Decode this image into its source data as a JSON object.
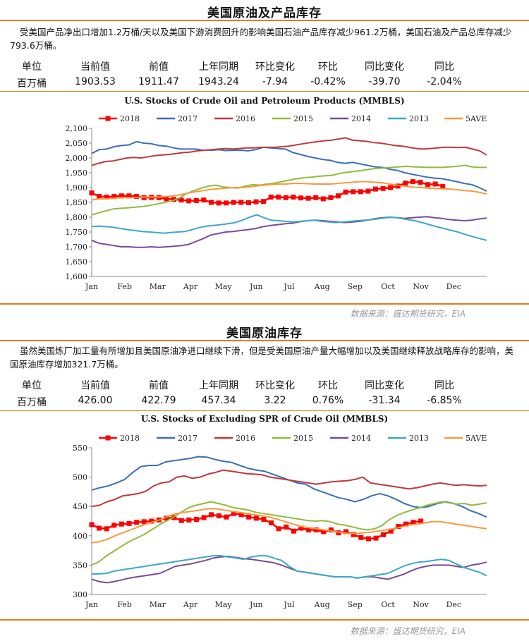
{
  "section1": {
    "title": "美国原油及产品库存",
    "description": "受美国产品净出口增加1.2万桶/天以及美国下游消费回升的影响美国石油产品库存减少961.2万桶，美国石油及产品总库存减少793.6万桶。",
    "table": {
      "headers": [
        "单位",
        "当前值",
        "前值",
        "上年同期",
        "环比变化",
        "环比",
        "同比变化",
        "同比"
      ],
      "values": [
        "百万桶",
        "1903.53",
        "1911.47",
        "1943.24",
        "-7.94",
        "-0.42%",
        "-39.70",
        "-2.04%"
      ]
    },
    "source": "数据来源：盛达期货研究，EIA"
  },
  "section2": {
    "title": "美国原油库存",
    "description": "虽然美国炼厂加工量有所增加且美国原油净进口继续下滑，但是受美国原油产量大幅增加以及美国继续释放战略库存的影响，美国原油库存增加321.7万桶。",
    "table": {
      "headers": [
        "单位",
        "当前值",
        "前值",
        "上年同期",
        "环比变化",
        "环比",
        "同比变化",
        "同比"
      ],
      "values": [
        "百万桶",
        "426.00",
        "422.79",
        "457.34",
        "3.22",
        "0.76%",
        "-31.34",
        "-6.85%"
      ]
    },
    "source": "数据来源：盛达期货研究，EIA"
  },
  "colors": {
    "accent": "#e57b1e",
    "s2018": "#ff0000",
    "s2017": "#3a6fb5",
    "s2016": "#c0393b",
    "s2015": "#8fbc3c",
    "s2014": "#7a4b9a",
    "s2013": "#3aa8c8",
    "s5ave": "#f59a3c"
  },
  "chart_data": [
    {
      "type": "line",
      "title": "U.S. Stocks of Crude Oil and Petroleum Products (MMBLS)",
      "xlabel": "",
      "ylabel": "",
      "x_ticks": [
        "Jan",
        "Feb",
        "Mar",
        "Apr",
        "May",
        "Jun",
        "Jul",
        "Aug",
        "Sep",
        "Oct",
        "Nov",
        "Dec"
      ],
      "ylim": [
        1600,
        2100
      ],
      "y_ticks": [
        1600,
        1650,
        1700,
        1750,
        1800,
        1850,
        1900,
        1950,
        2000,
        2050,
        2100
      ],
      "legend": "top",
      "series": [
        {
          "name": "2018",
          "color": "#ff0000",
          "marker": "square",
          "values": [
            1882,
            1870,
            1868,
            1870,
            1872,
            1872,
            1870,
            1866,
            1867,
            1866,
            1862,
            1860,
            1858,
            1855,
            1856,
            1858,
            1850,
            1848,
            1848,
            1850,
            1850,
            1849,
            1852,
            1853,
            1868,
            1868,
            1866,
            1868,
            1865,
            1864,
            1866,
            1862,
            1866,
            1872,
            1885,
            1886,
            1886,
            1888,
            1895,
            1897,
            1900,
            1905,
            1915,
            1920,
            1918,
            1910,
            1912,
            1904
          ]
        },
        {
          "name": "2017",
          "color": "#3a6fb5",
          "values": [
            2015,
            2028,
            2030,
            2038,
            2042,
            2044,
            2055,
            2050,
            2048,
            2042,
            2040,
            2034,
            2030,
            2030,
            2030,
            2026,
            2026,
            2028,
            2025,
            2026,
            2026,
            2024,
            2028,
            2036,
            2034,
            2032,
            2030,
            2018,
            2012,
            2005,
            2000,
            1995,
            1992,
            1985,
            1982,
            1985,
            1980,
            1975,
            1970,
            1968,
            1962,
            1958,
            1950,
            1945,
            1940,
            1935,
            1932,
            1930,
            1925,
            1920,
            1914,
            1910,
            1900,
            1888
          ]
        },
        {
          "name": "2016",
          "color": "#c0393b",
          "values": [
            1975,
            1982,
            1988,
            1990,
            1995,
            2000,
            2002,
            2000,
            2004,
            2008,
            2010,
            2012,
            2015,
            2018,
            2020,
            2024,
            2026,
            2028,
            2030,
            2032,
            2030,
            2032,
            2034,
            2034,
            2036,
            2036,
            2036,
            2038,
            2040,
            2044,
            2048,
            2052,
            2055,
            2058,
            2060,
            2064,
            2068,
            2060,
            2058,
            2056,
            2052,
            2050,
            2046,
            2042,
            2040,
            2036,
            2032,
            2030,
            2032,
            2034,
            2036,
            2036,
            2035,
            2036,
            2030,
            2024,
            2010
          ]
        },
        {
          "name": "2015",
          "color": "#8fbc3c",
          "values": [
            1808,
            1815,
            1822,
            1828,
            1830,
            1832,
            1834,
            1836,
            1840,
            1845,
            1850,
            1855,
            1865,
            1880,
            1890,
            1898,
            1905,
            1908,
            1902,
            1900,
            1898,
            1905,
            1910,
            1908,
            1912,
            1915,
            1920,
            1925,
            1930,
            1933,
            1935,
            1938,
            1940,
            1942,
            1948,
            1952,
            1955,
            1958,
            1962,
            1965,
            1966,
            1968,
            1970,
            1972,
            1970,
            1969,
            1968,
            1968,
            1968,
            1970,
            1972,
            1975,
            1970,
            1968,
            1968
          ]
        },
        {
          "name": "2014",
          "color": "#7a4b9a",
          "values": [
            1722,
            1712,
            1708,
            1704,
            1700,
            1700,
            1698,
            1698,
            1700,
            1698,
            1700,
            1702,
            1704,
            1708,
            1718,
            1728,
            1740,
            1745,
            1750,
            1752,
            1755,
            1758,
            1762,
            1768,
            1772,
            1775,
            1778,
            1780,
            1785,
            1788,
            1790,
            1788,
            1786,
            1784,
            1782,
            1784,
            1786,
            1790,
            1795,
            1798,
            1800,
            1798,
            1796,
            1798,
            1800,
            1802,
            1798,
            1796,
            1792,
            1790,
            1788,
            1790,
            1794,
            1797
          ]
        },
        {
          "name": "2013",
          "color": "#3aa8c8",
          "values": [
            1768,
            1770,
            1768,
            1766,
            1762,
            1758,
            1755,
            1752,
            1750,
            1748,
            1746,
            1748,
            1750,
            1752,
            1758,
            1765,
            1770,
            1772,
            1775,
            1778,
            1782,
            1790,
            1800,
            1808,
            1798,
            1790,
            1788,
            1786,
            1784,
            1786,
            1788,
            1790,
            1786,
            1784,
            1782,
            1784,
            1786,
            1788,
            1790,
            1792,
            1795,
            1798,
            1800,
            1796,
            1792,
            1788,
            1782,
            1775,
            1768,
            1762,
            1756,
            1750,
            1742,
            1735,
            1728,
            1722
          ]
        },
        {
          "name": "5AVE",
          "color": "#f59a3c",
          "values": [
            1858,
            1862,
            1862,
            1864,
            1866,
            1866,
            1866,
            1868,
            1868,
            1868,
            1870,
            1872,
            1876,
            1882,
            1886,
            1890,
            1894,
            1896,
            1898,
            1900,
            1900,
            1902,
            1905,
            1908,
            1910,
            1912,
            1912,
            1914,
            1914,
            1913,
            1912,
            1912,
            1912,
            1914,
            1916,
            1918,
            1920,
            1920,
            1918,
            1916,
            1912,
            1908,
            1905,
            1902,
            1900,
            1898,
            1897,
            1896,
            1895,
            1893,
            1890,
            1888,
            1884,
            1878
          ]
        }
      ]
    },
    {
      "type": "line",
      "title": "U.S. Stocks of Excluding SPR of Crude Oil (MMBLS)",
      "xlabel": "",
      "ylabel": "",
      "x_ticks": [
        "Jan",
        "Feb",
        "Mar",
        "Apr",
        "May",
        "Jun",
        "Jul",
        "Aug",
        "Sep",
        "Oct",
        "Nov",
        "Dec"
      ],
      "ylim": [
        300,
        550
      ],
      "y_ticks": [
        300,
        350,
        400,
        450,
        500,
        550
      ],
      "legend": "top",
      "series": [
        {
          "name": "2018",
          "color": "#ff0000",
          "marker": "square",
          "values": [
            419,
            413,
            412,
            418,
            420,
            421,
            423,
            424,
            425,
            427,
            430,
            431,
            426,
            427,
            428,
            431,
            436,
            434,
            432,
            438,
            436,
            432,
            430,
            428,
            422,
            412,
            415,
            408,
            413,
            410,
            410,
            407,
            410,
            405,
            407,
            402,
            397,
            395,
            396,
            402,
            408,
            416,
            420,
            423,
            425
          ]
        },
        {
          "name": "2017",
          "color": "#3a6fb5",
          "values": [
            478,
            482,
            485,
            490,
            496,
            508,
            518,
            520,
            520,
            526,
            528,
            530,
            532,
            535,
            534,
            530,
            527,
            525,
            520,
            515,
            512,
            510,
            505,
            500,
            495,
            490,
            488,
            480,
            475,
            470,
            465,
            462,
            458,
            462,
            468,
            472,
            468,
            462,
            455,
            450,
            448,
            450,
            455,
            458,
            455,
            450,
            443,
            438,
            432
          ]
        },
        {
          "name": "2016",
          "color": "#c0393b",
          "values": [
            450,
            452,
            458,
            462,
            468,
            470,
            472,
            476,
            485,
            490,
            492,
            500,
            502,
            498,
            500,
            505,
            508,
            512,
            510,
            508,
            506,
            505,
            504,
            500,
            498,
            496,
            494,
            492,
            490,
            488,
            490,
            492,
            493,
            494,
            496,
            500,
            490,
            488,
            486,
            484,
            482,
            480,
            482,
            485,
            488,
            490,
            488,
            486,
            487,
            486,
            485,
            486
          ]
        },
        {
          "name": "2015",
          "color": "#8fbc3c",
          "values": [
            350,
            356,
            366,
            374,
            382,
            390,
            396,
            402,
            410,
            418,
            425,
            432,
            440,
            448,
            452,
            455,
            458,
            455,
            452,
            448,
            446,
            444,
            440,
            438,
            436,
            434,
            432,
            430,
            428,
            426,
            425,
            426,
            424,
            420,
            418,
            415,
            412,
            410,
            412,
            418,
            428,
            435,
            440,
            444,
            448,
            452,
            455,
            458,
            456,
            454,
            455,
            452,
            454,
            456
          ]
        },
        {
          "name": "2014",
          "color": "#7a4b9a",
          "values": [
            326,
            322,
            320,
            322,
            325,
            328,
            330,
            332,
            334,
            336,
            342,
            348,
            350,
            352,
            355,
            358,
            362,
            364,
            365,
            363,
            361,
            360,
            358,
            356,
            354,
            350,
            345,
            340,
            338,
            336,
            334,
            332,
            330,
            330,
            330,
            328,
            330,
            330,
            328,
            326,
            330,
            334,
            340,
            345,
            348,
            350,
            350,
            350,
            348,
            346,
            350,
            352,
            355
          ]
        },
        {
          "name": "2013",
          "color": "#3aa8c8",
          "values": [
            335,
            335,
            336,
            340,
            342,
            344,
            346,
            348,
            350,
            352,
            354,
            356,
            358,
            360,
            362,
            364,
            366,
            366,
            364,
            362,
            360,
            364,
            366,
            366,
            362,
            358,
            348,
            340,
            338,
            336,
            334,
            332,
            330,
            330,
            330,
            328,
            330,
            332,
            334,
            336,
            342,
            348,
            352,
            355,
            356,
            358,
            360,
            358,
            352,
            346,
            342,
            338,
            332
          ]
        },
        {
          "name": "5AVE",
          "color": "#f59a3c",
          "values": [
            388,
            390,
            394,
            400,
            405,
            410,
            415,
            420,
            424,
            428,
            434,
            438,
            440,
            442,
            444,
            446,
            446,
            444,
            442,
            440,
            438,
            436,
            434,
            432,
            428,
            424,
            420,
            416,
            414,
            412,
            410,
            408,
            406,
            404,
            404,
            405,
            406,
            408,
            410,
            412,
            415,
            418,
            420,
            422,
            424,
            424,
            422,
            420,
            418,
            416,
            414,
            412
          ]
        }
      ]
    }
  ]
}
